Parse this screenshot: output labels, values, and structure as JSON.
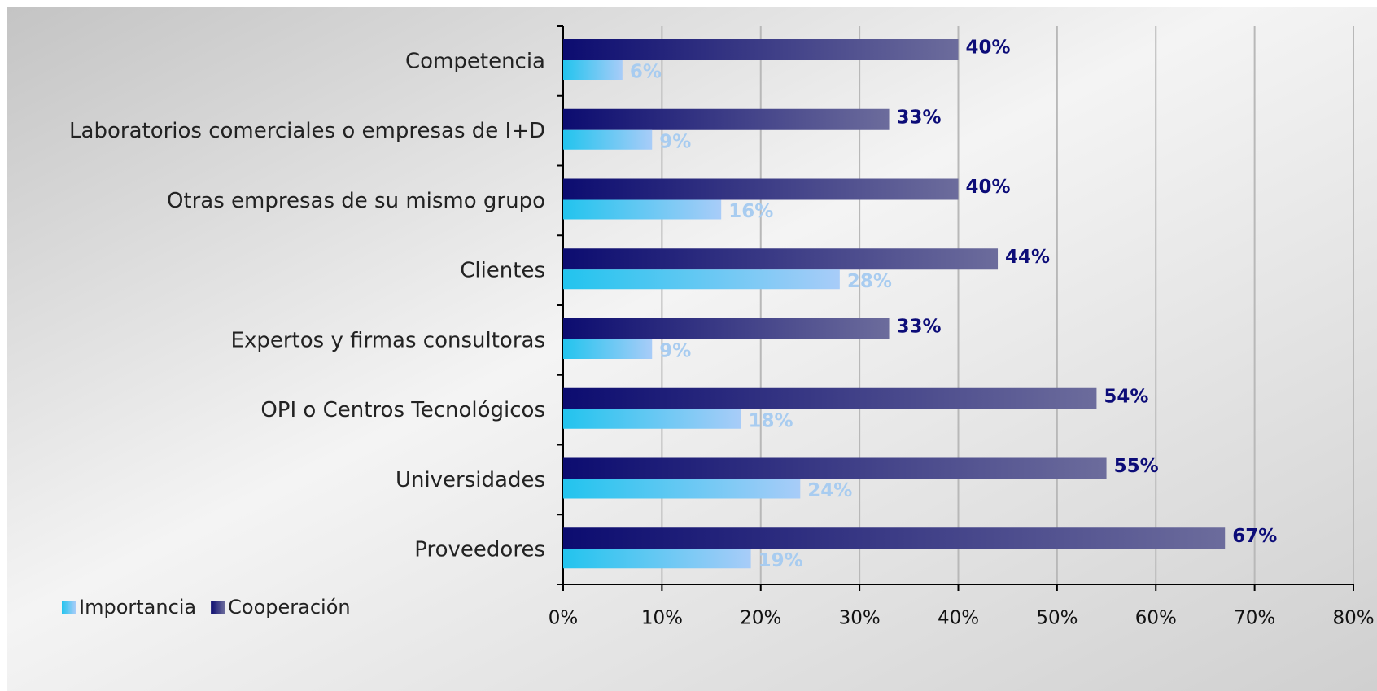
{
  "chart_data": {
    "type": "barh",
    "categories": [
      "Competencia",
      "Laboratorios comerciales o empresas de I+D",
      "Otras empresas de su mismo grupo",
      "Clientes",
      "Expertos y firmas consultoras",
      "OPI o Centros Tecnológicos",
      "Universidades",
      "Proveedores"
    ],
    "series": [
      {
        "name": "Importancia",
        "color": "#22c4ee",
        "values": [
          6,
          9,
          16,
          28,
          9,
          18,
          24,
          19
        ],
        "value_labels": [
          "6%",
          "9%",
          "16%",
          "28%",
          "9%",
          "18%",
          "24%",
          "19%"
        ]
      },
      {
        "name": "Cooperación",
        "color": "#0c0c70",
        "values": [
          40,
          33,
          40,
          44,
          33,
          54,
          55,
          67
        ],
        "value_labels": [
          "40%",
          "33%",
          "40%",
          "44%",
          "33%",
          "54%",
          "55%",
          "67%"
        ]
      }
    ],
    "xlim": [
      0,
      80
    ],
    "xticks": [
      {
        "value": 0,
        "label": "0%"
      },
      {
        "value": 10,
        "label": "10%"
      },
      {
        "value": 20,
        "label": "20%"
      },
      {
        "value": 30,
        "label": "30%"
      },
      {
        "value": 40,
        "label": "40%"
      },
      {
        "value": 50,
        "label": "50%"
      },
      {
        "value": 60,
        "label": "60%"
      },
      {
        "value": 70,
        "label": "70%"
      },
      {
        "value": 80,
        "label": "80%"
      }
    ],
    "grid": true,
    "legend": "bottom-left"
  }
}
